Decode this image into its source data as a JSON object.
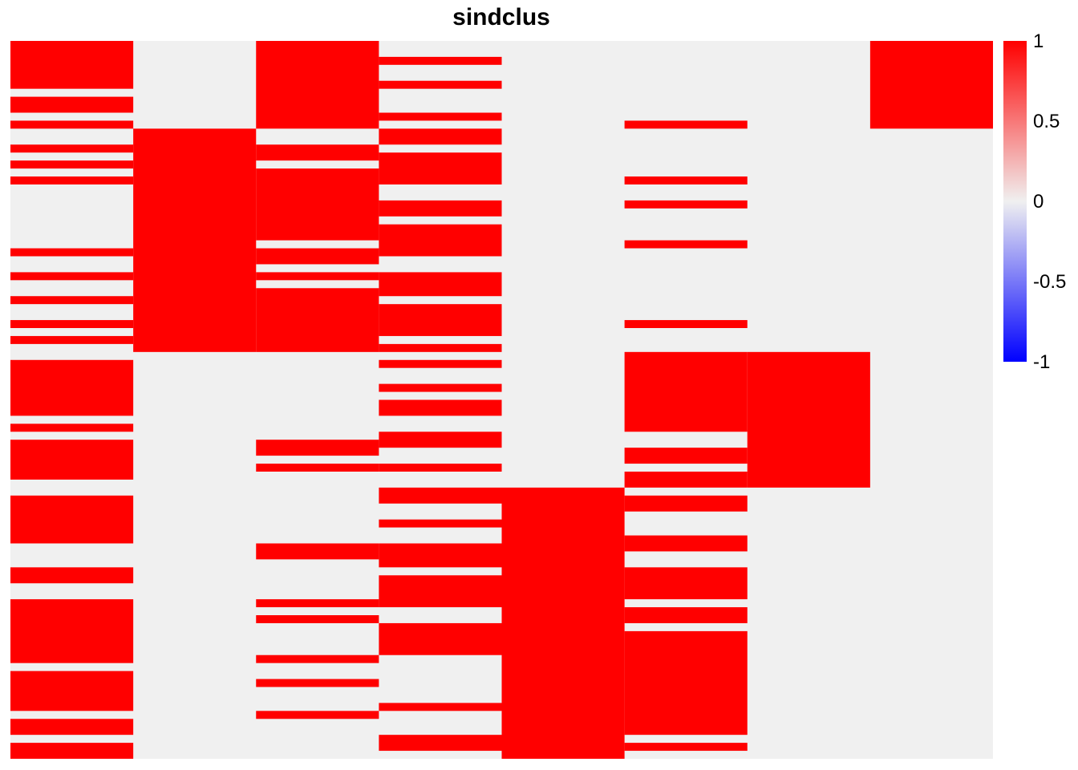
{
  "chart_data": {
    "type": "heatmap",
    "title": "sindclus",
    "n_rows": 90,
    "n_cols": 8,
    "value_range": [
      -1,
      1
    ],
    "colors": {
      "background": "#f0f0f0",
      "positive": "#ff0000",
      "zero": "#f0f0f0",
      "negative": "#0000ff"
    },
    "legend": {
      "position": "right",
      "ticks": [
        {
          "value": 1,
          "label": "1"
        },
        {
          "value": 0.5,
          "label": "0.5"
        },
        {
          "value": 0,
          "label": "0"
        },
        {
          "value": -0.5,
          "label": "-0.5"
        },
        {
          "value": -1,
          "label": "-1"
        }
      ]
    },
    "columns": [
      {
        "index": 1,
        "on_rows": [
          0,
          1,
          2,
          3,
          4,
          5,
          7,
          8,
          10,
          13,
          15,
          17,
          26,
          29,
          32,
          35,
          37,
          40,
          41,
          42,
          43,
          44,
          45,
          46,
          48,
          50,
          51,
          52,
          53,
          54,
          57,
          58,
          59,
          60,
          61,
          62,
          66,
          67,
          70,
          71,
          72,
          73,
          74,
          75,
          76,
          77,
          79,
          80,
          81,
          82,
          83,
          85,
          86,
          88,
          89
        ]
      },
      {
        "index": 2,
        "on_rows": [
          11,
          12,
          13,
          14,
          15,
          16,
          17,
          18,
          19,
          20,
          21,
          22,
          23,
          24,
          25,
          26,
          27,
          28,
          29,
          30,
          31,
          32,
          33,
          34,
          35,
          36,
          37,
          38
        ]
      },
      {
        "index": 3,
        "on_rows": [
          0,
          1,
          2,
          3,
          4,
          5,
          6,
          7,
          8,
          9,
          10,
          13,
          14,
          16,
          17,
          18,
          19,
          20,
          21,
          22,
          23,
          24,
          26,
          27,
          29,
          31,
          32,
          33,
          34,
          35,
          36,
          37,
          38,
          50,
          51,
          53,
          63,
          64,
          70,
          72,
          77,
          80,
          84
        ]
      },
      {
        "index": 4,
        "on_rows": [
          2,
          5,
          9,
          11,
          12,
          14,
          15,
          16,
          17,
          20,
          21,
          23,
          24,
          25,
          26,
          29,
          30,
          31,
          33,
          34,
          35,
          36,
          38,
          40,
          43,
          45,
          46,
          49,
          50,
          53,
          56,
          57,
          60,
          63,
          64,
          65,
          67,
          68,
          69,
          70,
          73,
          74,
          75,
          76,
          83,
          87,
          88
        ]
      },
      {
        "index": 5,
        "on_rows": [
          56,
          57,
          58,
          59,
          60,
          61,
          62,
          63,
          64,
          65,
          66,
          67,
          68,
          69,
          70,
          71,
          72,
          73,
          74,
          75,
          76,
          77,
          78,
          79,
          80,
          81,
          82,
          83,
          84,
          85,
          86,
          87,
          88,
          89
        ]
      },
      {
        "index": 6,
        "on_rows": [
          10,
          17,
          20,
          25,
          35,
          39,
          40,
          41,
          42,
          43,
          44,
          45,
          46,
          47,
          48,
          51,
          52,
          54,
          55,
          57,
          58,
          62,
          63,
          66,
          67,
          68,
          69,
          71,
          72,
          74,
          75,
          76,
          77,
          78,
          79,
          80,
          81,
          82,
          83,
          84,
          85,
          86,
          88
        ]
      },
      {
        "index": 7,
        "on_rows": [
          39,
          40,
          41,
          42,
          43,
          44,
          45,
          46,
          47,
          48,
          49,
          50,
          51,
          52,
          53,
          54,
          55
        ]
      },
      {
        "index": 8,
        "on_rows": [
          0,
          1,
          2,
          3,
          4,
          5,
          6,
          7,
          8,
          9,
          10
        ]
      }
    ]
  }
}
